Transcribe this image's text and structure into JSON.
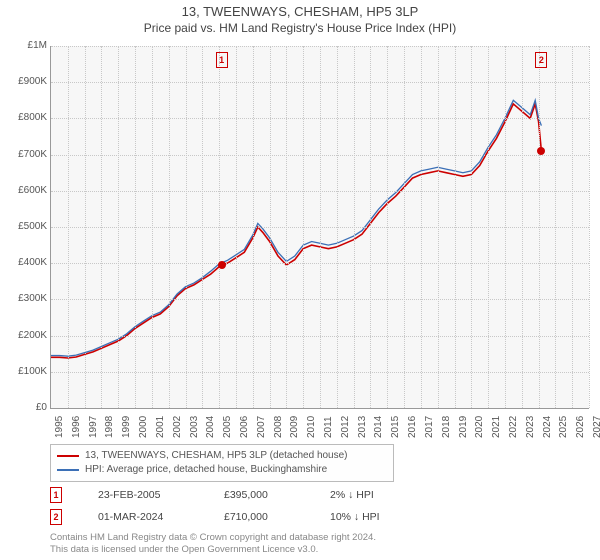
{
  "title": "13, TWEENWAYS, CHESHAM, HP5 3LP",
  "subtitle": "Price paid vs. HM Land Registry's House Price Index (HPI)",
  "chart": {
    "background": "#f7f7f7",
    "grid_color": "#c8c8c8",
    "axis_color": "#999999",
    "x_start_year": 1995,
    "x_end_year": 2027,
    "y_min": 0,
    "y_max": 1000000,
    "y_ticks": [
      0,
      100000,
      200000,
      300000,
      400000,
      500000,
      600000,
      700000,
      800000,
      900000,
      1000000
    ],
    "y_tick_labels": [
      "£0",
      "£100K",
      "£200K",
      "£300K",
      "£400K",
      "£500K",
      "£600K",
      "£700K",
      "£800K",
      "£900K",
      "£1M"
    ],
    "x_ticks": [
      1995,
      1996,
      1997,
      1998,
      1999,
      2000,
      2001,
      2002,
      2003,
      2004,
      2005,
      2006,
      2007,
      2008,
      2009,
      2010,
      2011,
      2012,
      2013,
      2014,
      2015,
      2016,
      2017,
      2018,
      2019,
      2020,
      2021,
      2022,
      2023,
      2024,
      2025,
      2026,
      2027
    ],
    "series": [
      {
        "name": "property",
        "label": "13, TWEENWAYS, CHESHAM, HP5 3LP (detached house)",
        "color": "#cc0000",
        "width": 1.6,
        "data": [
          [
            1995.0,
            140000
          ],
          [
            1995.5,
            140000
          ],
          [
            1996.0,
            138000
          ],
          [
            1996.5,
            141000
          ],
          [
            1997.0,
            148000
          ],
          [
            1997.5,
            155000
          ],
          [
            1998.0,
            165000
          ],
          [
            1998.5,
            175000
          ],
          [
            1999.0,
            185000
          ],
          [
            1999.5,
            200000
          ],
          [
            2000.0,
            220000
          ],
          [
            2000.5,
            235000
          ],
          [
            2001.0,
            250000
          ],
          [
            2001.5,
            260000
          ],
          [
            2002.0,
            280000
          ],
          [
            2002.5,
            310000
          ],
          [
            2003.0,
            330000
          ],
          [
            2003.5,
            340000
          ],
          [
            2004.0,
            355000
          ],
          [
            2004.5,
            370000
          ],
          [
            2005.0,
            390000
          ],
          [
            2005.15,
            395000
          ],
          [
            2005.5,
            400000
          ],
          [
            2006.0,
            415000
          ],
          [
            2006.5,
            430000
          ],
          [
            2007.0,
            470000
          ],
          [
            2007.3,
            500000
          ],
          [
            2007.6,
            485000
          ],
          [
            2008.0,
            460000
          ],
          [
            2008.5,
            420000
          ],
          [
            2009.0,
            395000
          ],
          [
            2009.5,
            410000
          ],
          [
            2010.0,
            440000
          ],
          [
            2010.5,
            450000
          ],
          [
            2011.0,
            445000
          ],
          [
            2011.5,
            440000
          ],
          [
            2012.0,
            445000
          ],
          [
            2012.5,
            455000
          ],
          [
            2013.0,
            465000
          ],
          [
            2013.5,
            480000
          ],
          [
            2014.0,
            510000
          ],
          [
            2014.5,
            540000
          ],
          [
            2015.0,
            565000
          ],
          [
            2015.5,
            585000
          ],
          [
            2016.0,
            610000
          ],
          [
            2016.5,
            635000
          ],
          [
            2017.0,
            645000
          ],
          [
            2017.5,
            650000
          ],
          [
            2018.0,
            655000
          ],
          [
            2018.5,
            650000
          ],
          [
            2019.0,
            645000
          ],
          [
            2019.5,
            640000
          ],
          [
            2020.0,
            645000
          ],
          [
            2020.5,
            670000
          ],
          [
            2021.0,
            710000
          ],
          [
            2021.5,
            745000
          ],
          [
            2022.0,
            790000
          ],
          [
            2022.5,
            840000
          ],
          [
            2023.0,
            820000
          ],
          [
            2023.5,
            800000
          ],
          [
            2023.8,
            840000
          ],
          [
            2024.0,
            790000
          ],
          [
            2024.17,
            710000
          ]
        ]
      },
      {
        "name": "hpi",
        "label": "HPI: Average price, detached house, Buckinghamshire",
        "color": "#3b6fb6",
        "width": 1.3,
        "data": [
          [
            1995.0,
            145000
          ],
          [
            1995.5,
            145000
          ],
          [
            1996.0,
            143000
          ],
          [
            1996.5,
            146000
          ],
          [
            1997.0,
            153000
          ],
          [
            1997.5,
            160000
          ],
          [
            1998.0,
            170000
          ],
          [
            1998.5,
            180000
          ],
          [
            1999.0,
            190000
          ],
          [
            1999.5,
            205000
          ],
          [
            2000.0,
            225000
          ],
          [
            2000.5,
            240000
          ],
          [
            2001.0,
            255000
          ],
          [
            2001.5,
            265000
          ],
          [
            2002.0,
            285000
          ],
          [
            2002.5,
            315000
          ],
          [
            2003.0,
            335000
          ],
          [
            2003.5,
            345000
          ],
          [
            2004.0,
            360000
          ],
          [
            2004.5,
            378000
          ],
          [
            2005.0,
            398000
          ],
          [
            2005.5,
            408000
          ],
          [
            2006.0,
            423000
          ],
          [
            2006.5,
            438000
          ],
          [
            2007.0,
            478000
          ],
          [
            2007.3,
            510000
          ],
          [
            2007.6,
            495000
          ],
          [
            2008.0,
            470000
          ],
          [
            2008.5,
            430000
          ],
          [
            2009.0,
            405000
          ],
          [
            2009.5,
            420000
          ],
          [
            2010.0,
            450000
          ],
          [
            2010.5,
            460000
          ],
          [
            2011.0,
            455000
          ],
          [
            2011.5,
            450000
          ],
          [
            2012.0,
            455000
          ],
          [
            2012.5,
            465000
          ],
          [
            2013.0,
            475000
          ],
          [
            2013.5,
            490000
          ],
          [
            2014.0,
            520000
          ],
          [
            2014.5,
            550000
          ],
          [
            2015.0,
            575000
          ],
          [
            2015.5,
            595000
          ],
          [
            2016.0,
            620000
          ],
          [
            2016.5,
            645000
          ],
          [
            2017.0,
            655000
          ],
          [
            2017.5,
            660000
          ],
          [
            2018.0,
            665000
          ],
          [
            2018.5,
            660000
          ],
          [
            2019.0,
            655000
          ],
          [
            2019.5,
            650000
          ],
          [
            2020.0,
            655000
          ],
          [
            2020.5,
            680000
          ],
          [
            2021.0,
            720000
          ],
          [
            2021.5,
            755000
          ],
          [
            2022.0,
            800000
          ],
          [
            2022.5,
            850000
          ],
          [
            2023.0,
            830000
          ],
          [
            2023.5,
            810000
          ],
          [
            2023.8,
            850000
          ],
          [
            2024.0,
            800000
          ],
          [
            2024.17,
            780000
          ]
        ]
      }
    ],
    "markers": [
      {
        "n": "1",
        "year": 2005.15,
        "color": "#cc0000"
      },
      {
        "n": "2",
        "year": 2024.17,
        "color": "#cc0000"
      }
    ],
    "price_points": [
      {
        "year": 2005.15,
        "value": 395000,
        "color": "#cc0000"
      },
      {
        "year": 2024.17,
        "value": 710000,
        "color": "#cc0000"
      }
    ]
  },
  "legend": {
    "border_color": "#bbbbbb",
    "items": [
      {
        "color": "#cc0000",
        "label": "13, TWEENWAYS, CHESHAM, HP5 3LP (detached house)"
      },
      {
        "color": "#3b6fb6",
        "label": "HPI: Average price, detached house, Buckinghamshire"
      }
    ]
  },
  "events": [
    {
      "n": "1",
      "color": "#cc0000",
      "date": "23-FEB-2005",
      "price": "£395,000",
      "delta": "2% ↓ HPI"
    },
    {
      "n": "2",
      "color": "#cc0000",
      "date": "01-MAR-2024",
      "price": "£710,000",
      "delta": "10% ↓ HPI"
    }
  ],
  "note_line1": "Contains HM Land Registry data © Crown copyright and database right 2024.",
  "note_line2": "This data is licensed under the Open Government Licence v3.0."
}
